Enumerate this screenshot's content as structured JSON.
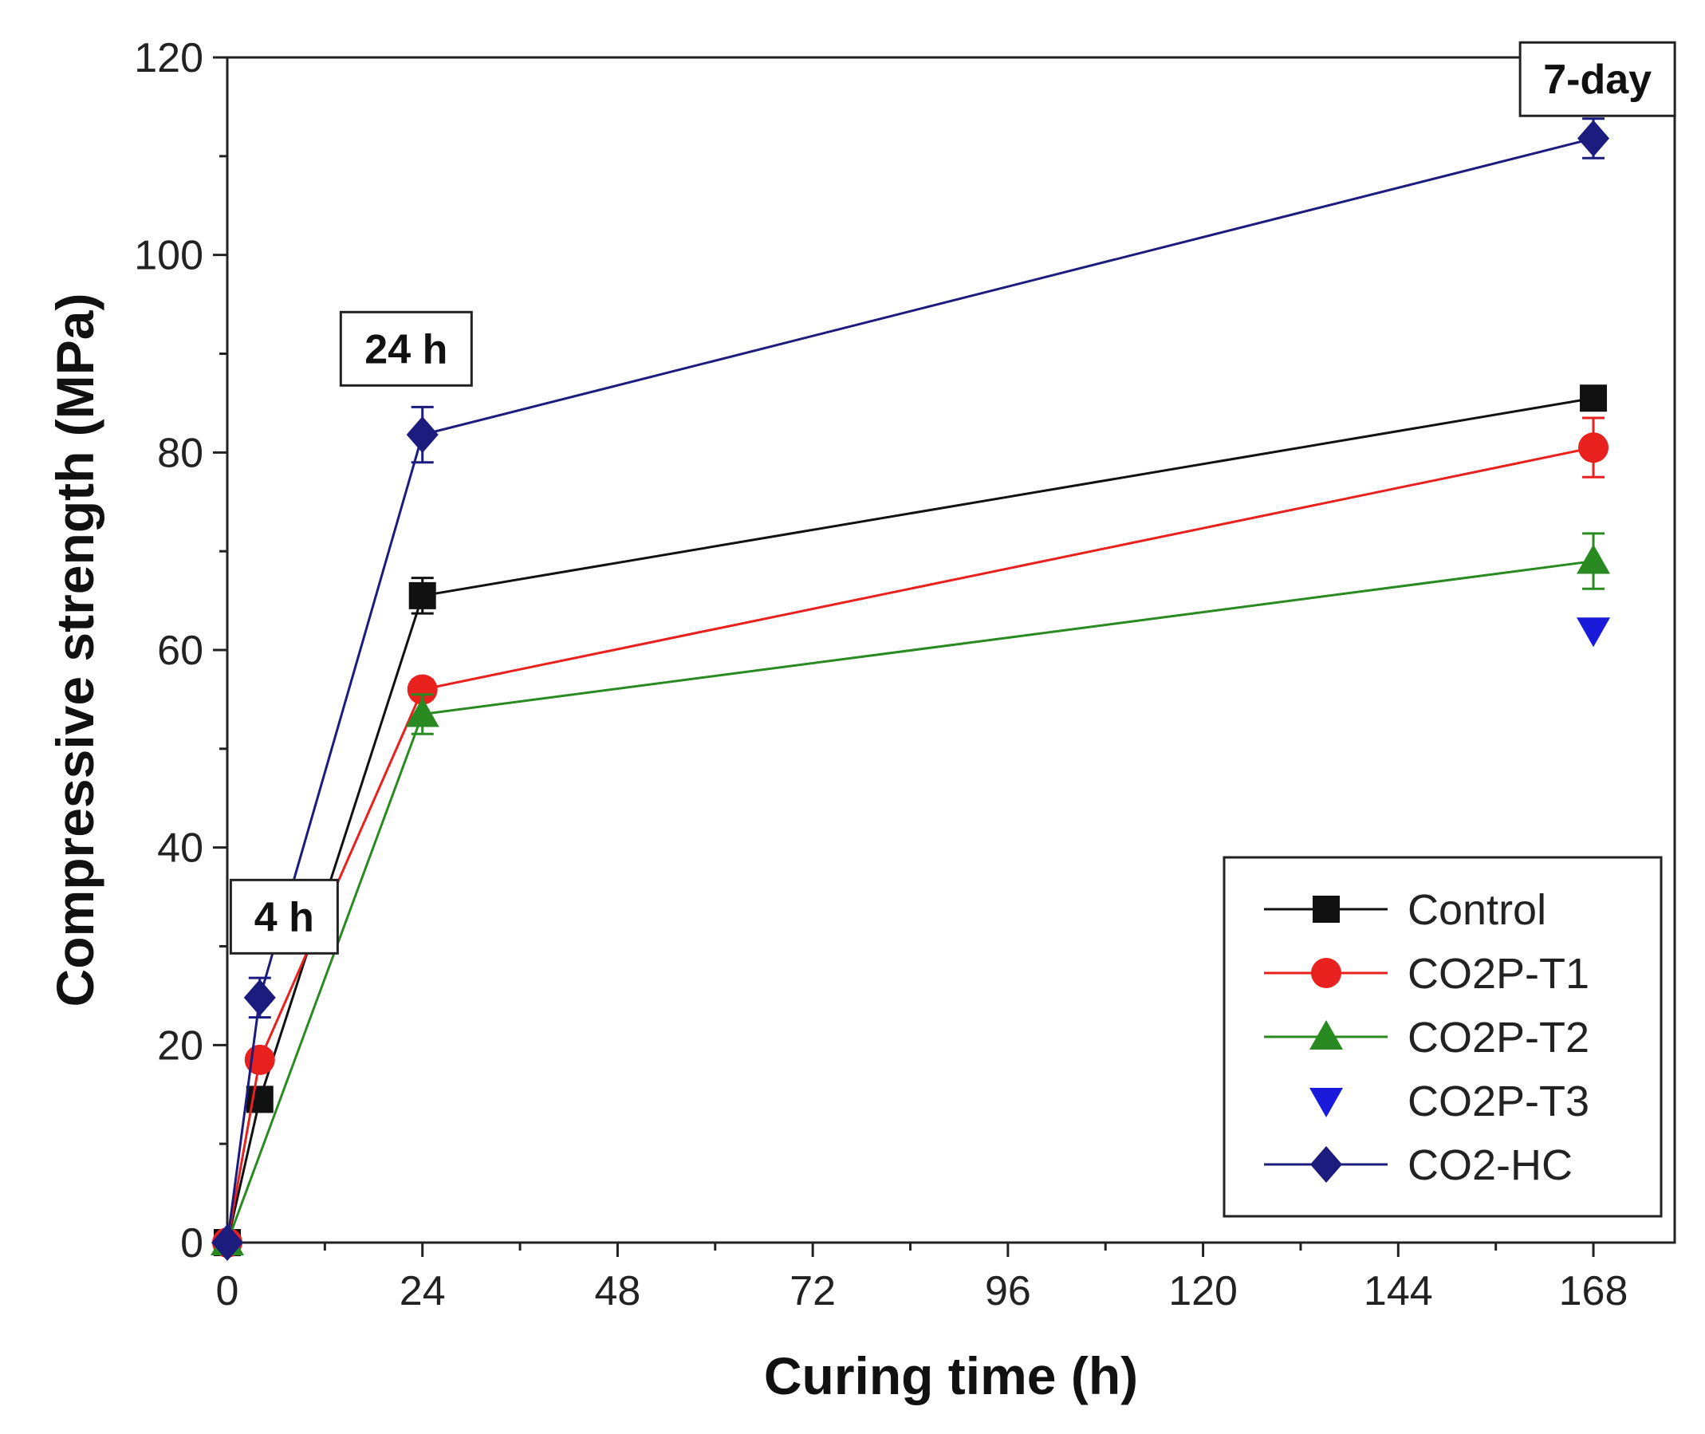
{
  "chart_data": {
    "type": "line",
    "xlabel": "Curing time (h)",
    "ylabel": "Compressive strength (MPa)",
    "xlim": [
      0,
      178
    ],
    "ylim": [
      0,
      120
    ],
    "xticks": [
      0,
      24,
      48,
      72,
      96,
      120,
      144,
      168
    ],
    "yticks": [
      0,
      20,
      40,
      60,
      80,
      100,
      120
    ],
    "x_minor_step": 12,
    "y_minor_step": 10,
    "grid": false,
    "legend_position": "bottom-right",
    "series": [
      {
        "name": "Control",
        "color": "#111111",
        "marker": "square",
        "line": true,
        "points": [
          {
            "x": 0,
            "y": 0,
            "err": 0
          },
          {
            "x": 4,
            "y": 14.5,
            "err": 0.8
          },
          {
            "x": 24,
            "y": 65.5,
            "err": 1.8
          },
          {
            "x": 168,
            "y": 85.5,
            "err": 0.8
          }
        ]
      },
      {
        "name": "CO2P-T1",
        "color": "#e8201e",
        "marker": "circle",
        "line": true,
        "points": [
          {
            "x": 0,
            "y": 0,
            "err": 0
          },
          {
            "x": 4,
            "y": 18.5,
            "err": 0.8
          },
          {
            "x": 24,
            "y": 56,
            "err": 1.0
          },
          {
            "x": 168,
            "y": 80.5,
            "err": 3.0
          }
        ]
      },
      {
        "name": "CO2P-T2",
        "color": "#2a8a22",
        "marker": "triangle-up",
        "line": true,
        "points": [
          {
            "x": 0,
            "y": 0,
            "err": 0
          },
          {
            "x": 24,
            "y": 53.5,
            "err": 2.0
          },
          {
            "x": 168,
            "y": 69,
            "err": 2.8
          }
        ]
      },
      {
        "name": "CO2P-T3",
        "color": "#1a1adb",
        "marker": "triangle-down",
        "line": false,
        "points": [
          {
            "x": 168,
            "y": 62,
            "err": 0
          }
        ]
      },
      {
        "name": "CO2-HC",
        "color": "#1c1c7e",
        "marker": "diamond",
        "line": true,
        "points": [
          {
            "x": 0,
            "y": 0,
            "err": 0
          },
          {
            "x": 4,
            "y": 24.8,
            "err": 2.0
          },
          {
            "x": 24,
            "y": 81.8,
            "err": 2.8
          },
          {
            "x": 168,
            "y": 111.8,
            "err": 2.0
          }
        ]
      }
    ],
    "annotations": [
      {
        "text": "4 h",
        "x": 7,
        "y": 33
      },
      {
        "text": "24 h",
        "x": 22,
        "y": 90.5
      },
      {
        "text": "7-day",
        "x": 168.5,
        "y": 117.8
      }
    ]
  }
}
